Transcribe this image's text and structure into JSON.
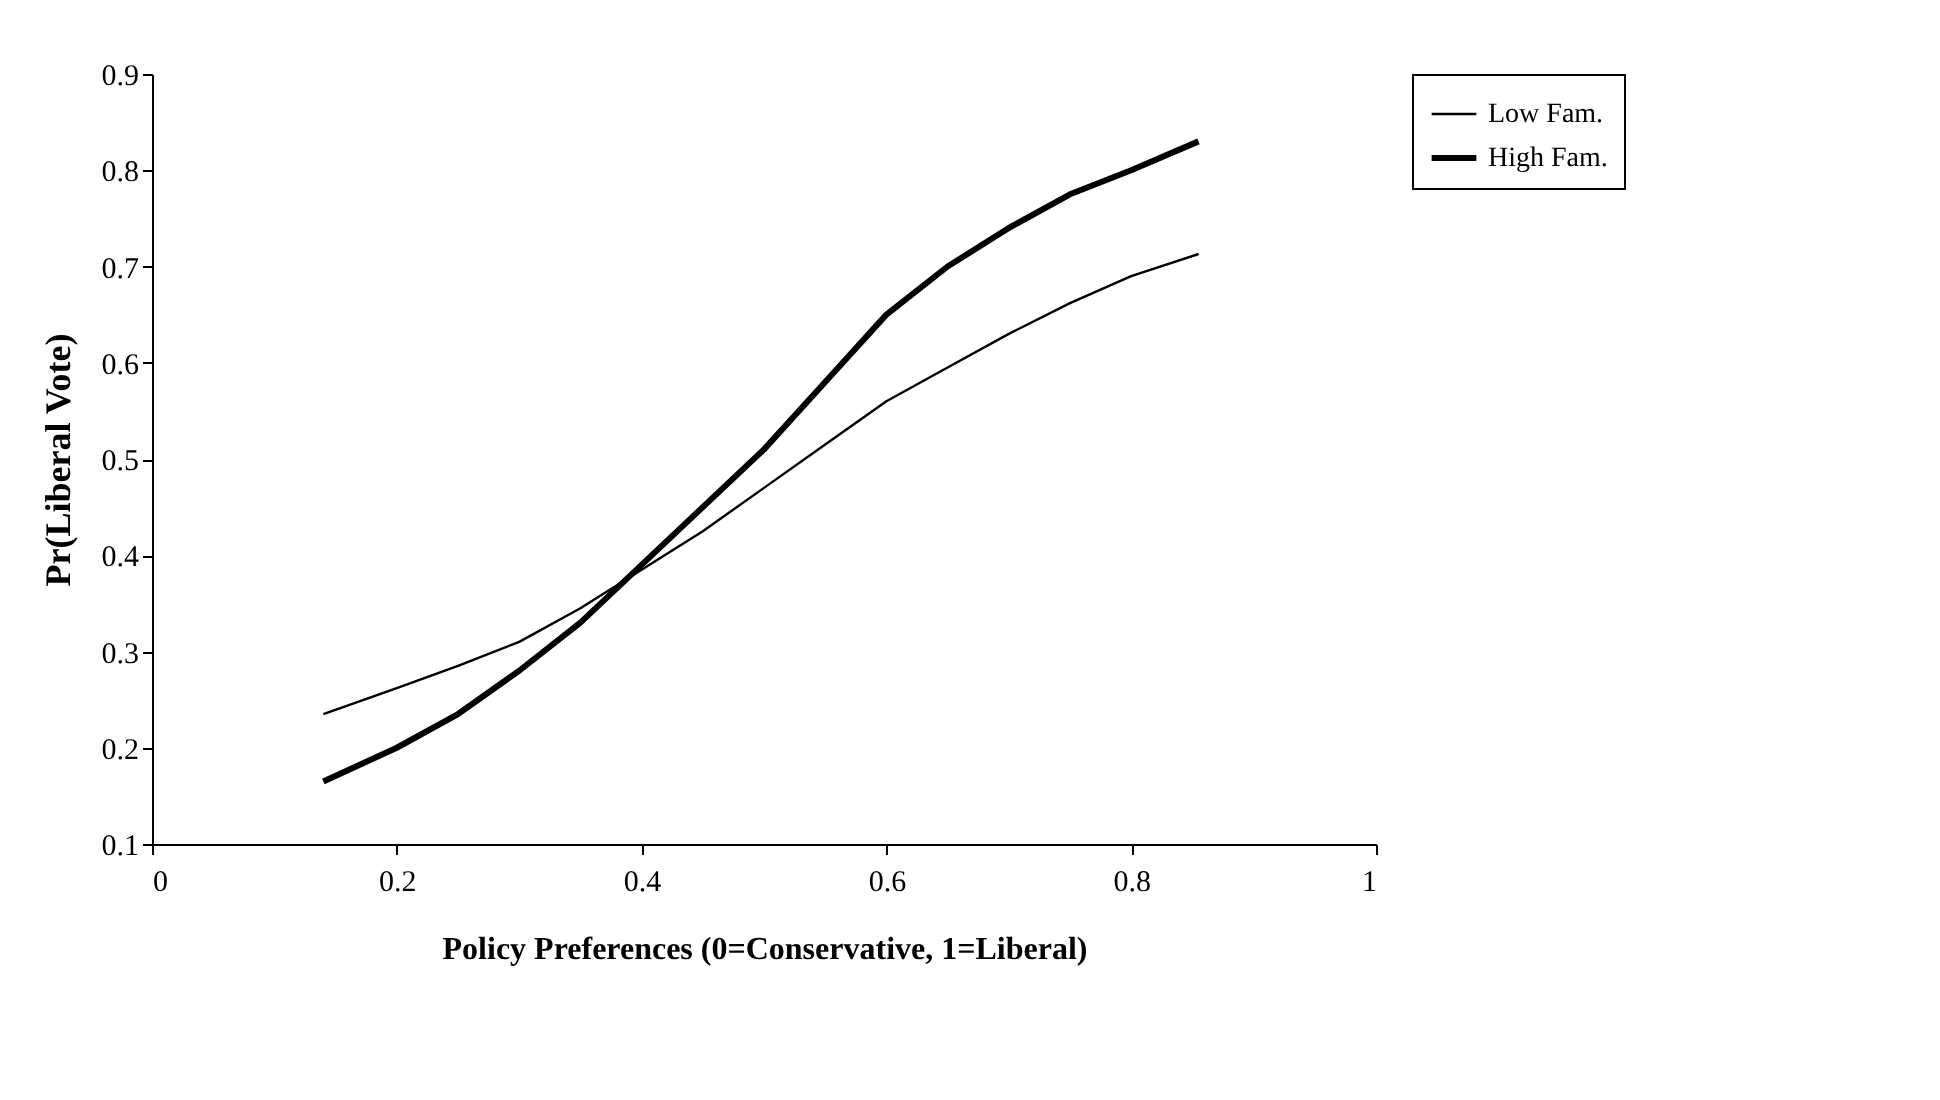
{
  "chart_data": {
    "type": "line",
    "xlabel": "Policy Preferences (0=Conservative, 1=Liberal)",
    "ylabel": "Pr(Liberal Vote)",
    "xlim": [
      0,
      1
    ],
    "xticks": [
      0,
      0.2,
      0.4,
      0.6,
      0.8,
      1
    ],
    "ylim": [
      0.1,
      0.9
    ],
    "yticks": [
      0.1,
      0.2,
      0.3,
      0.4,
      0.5,
      0.6,
      0.7,
      0.8,
      0.9
    ],
    "grid": false,
    "legend": "right",
    "marker": "none",
    "line_style": "solid",
    "series": [
      {
        "name": "Low Fam.",
        "color": "#000000",
        "x": [
          0.14,
          0.2,
          0.25,
          0.3,
          0.35,
          0.4,
          0.45,
          0.5,
          0.55,
          0.6,
          0.65,
          0.7,
          0.75,
          0.8,
          0.855
        ],
        "values": [
          0.235,
          0.262,
          0.285,
          0.31,
          0.345,
          0.385,
          0.425,
          0.47,
          0.515,
          0.56,
          0.595,
          0.63,
          0.662,
          0.69,
          0.713
        ]
      },
      {
        "name": "High Fam.",
        "color": "#000000",
        "x": [
          0.14,
          0.2,
          0.25,
          0.3,
          0.35,
          0.4,
          0.45,
          0.5,
          0.55,
          0.6,
          0.65,
          0.7,
          0.75,
          0.8,
          0.855
        ],
        "values": [
          0.165,
          0.2,
          0.235,
          0.28,
          0.33,
          0.39,
          0.45,
          0.51,
          0.58,
          0.65,
          0.7,
          0.74,
          0.775,
          0.8,
          0.83
        ]
      }
    ]
  }
}
